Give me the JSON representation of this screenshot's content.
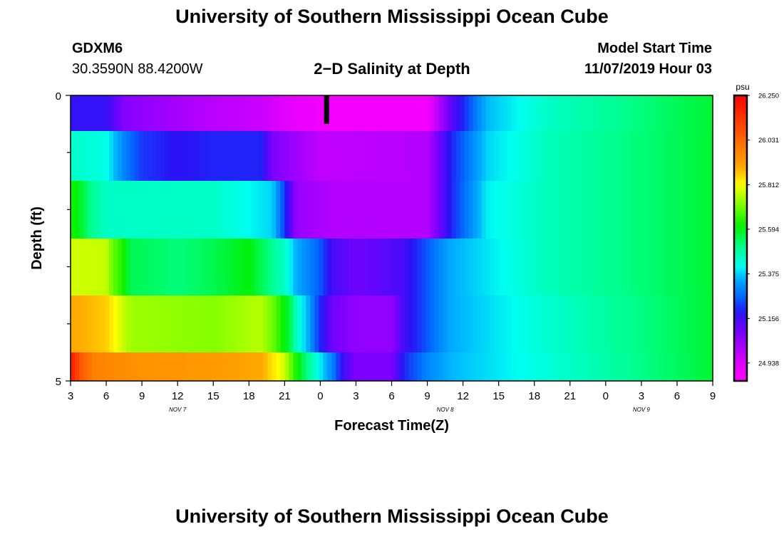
{
  "page": {
    "title_top": "University of Southern Mississippi Ocean Cube",
    "title_bottom": "University of Southern Mississippi Ocean Cube",
    "station_id": "GDXM6",
    "station_coords": "30.3590N 88.4200W",
    "plot_title": "2−D Salinity at Depth",
    "model_start_label": "Model Start Time",
    "model_start_value": "11/07/2019 Hour 03"
  },
  "chart_data": {
    "type": "heatmap",
    "title": "2−D Salinity at Depth",
    "xlabel": "Forecast Time(Z)",
    "ylabel": "Depth (ft)",
    "x_hours_since_start_range": [
      0,
      54
    ],
    "x_ticks": [
      "3",
      "6",
      "9",
      "12",
      "15",
      "18",
      "21",
      "0",
      "3",
      "6",
      "9",
      "12",
      "15",
      "18",
      "21",
      "0",
      "3",
      "6",
      "9"
    ],
    "x_date_labels": [
      {
        "text": "NOV  7",
        "at_tick": 3
      },
      {
        "text": "NOV  8",
        "at_tick": 10.5
      },
      {
        "text": "NOV  9",
        "at_tick": 16
      }
    ],
    "y_ticks": [
      "0",
      "5"
    ],
    "y_range": [
      0,
      5
    ],
    "y_minor_ticks": 5,
    "current_time_marker_hour": 21.5,
    "colorbar": {
      "unit": "psu",
      "min": 24.85,
      "max": 26.25,
      "labels": [
        "26.250",
        "26.031",
        "25.812",
        "25.594",
        "25.375",
        "25.156",
        "24.938"
      ]
    },
    "depth_layers": [
      {
        "depth": 0.25,
        "times": [
          0,
          3,
          4.5,
          6,
          9,
          12,
          16,
          19,
          22,
          30,
          32,
          35,
          40,
          54
        ],
        "values": [
          25.17,
          25.17,
          25.07,
          25.05,
          25.02,
          24.99,
          24.97,
          24.9,
          24.88,
          24.88,
          25.12,
          25.36,
          25.45,
          25.57
        ]
      },
      {
        "depth": 1,
        "times": [
          0,
          3,
          4.5,
          6,
          9,
          12,
          16,
          17,
          21,
          30,
          32,
          35,
          40,
          54
        ],
        "values": [
          25.45,
          25.42,
          25.3,
          25.22,
          25.18,
          25.2,
          25.2,
          25.08,
          24.98,
          25.0,
          25.2,
          25.38,
          25.46,
          25.57
        ]
      },
      {
        "depth": 2,
        "times": [
          0,
          0.5,
          1,
          1.5,
          3,
          6,
          12,
          17,
          18,
          19,
          22,
          30,
          32,
          35,
          40,
          54
        ],
        "values": [
          25.63,
          25.6,
          25.57,
          25.52,
          25.45,
          25.45,
          25.45,
          25.38,
          25.22,
          25.04,
          25.0,
          25.0,
          25.2,
          25.4,
          25.46,
          25.57
        ]
      },
      {
        "depth": 3,
        "times": [
          0,
          3,
          3.5,
          4.5,
          5,
          9,
          12,
          15,
          18,
          19,
          21,
          22,
          24,
          26,
          28,
          30,
          32,
          40,
          54
        ],
        "values": [
          25.78,
          25.77,
          25.7,
          25.62,
          25.55,
          25.52,
          25.55,
          25.6,
          25.45,
          25.35,
          25.25,
          25.15,
          25.1,
          25.12,
          25.15,
          25.25,
          25.35,
          25.46,
          25.57
        ]
      },
      {
        "depth": 4,
        "times": [
          0,
          3,
          5,
          12,
          16,
          17,
          18,
          18.5,
          19,
          20,
          21,
          22,
          24,
          27,
          28,
          30,
          32,
          40,
          54
        ],
        "values": [
          25.9,
          25.86,
          25.74,
          25.72,
          25.76,
          25.7,
          25.6,
          25.55,
          25.45,
          25.35,
          25.2,
          25.1,
          25.05,
          25.05,
          25.15,
          25.25,
          25.35,
          25.44,
          25.57
        ]
      },
      {
        "depth": 5,
        "times": [
          0,
          1,
          2,
          5,
          12,
          16,
          18,
          19,
          20,
          21,
          22,
          23,
          24,
          27,
          28,
          30,
          32,
          40,
          54
        ],
        "values": [
          26.2,
          26.05,
          25.98,
          25.95,
          25.93,
          25.9,
          25.78,
          25.62,
          25.5,
          25.4,
          25.3,
          25.15,
          25.08,
          25.08,
          25.2,
          25.3,
          25.36,
          25.43,
          25.57
        ]
      }
    ]
  }
}
